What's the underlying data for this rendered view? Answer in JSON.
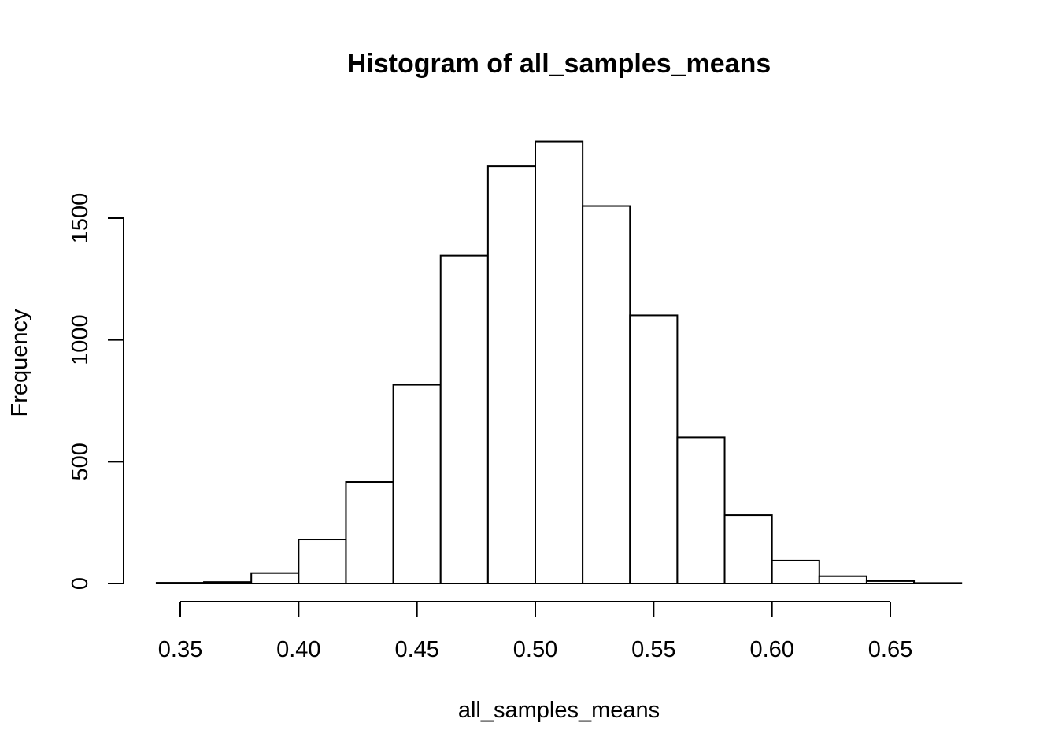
{
  "chart_data": {
    "type": "bar",
    "title": "Histogram of all_samples_means",
    "xlabel": "all_samples_means",
    "ylabel": "Frequency",
    "bin_edges": [
      0.34,
      0.36,
      0.38,
      0.4,
      0.42,
      0.44,
      0.46,
      0.48,
      0.5,
      0.52,
      0.54,
      0.56,
      0.58,
      0.6,
      0.62,
      0.64,
      0.66,
      0.68
    ],
    "values": [
      3,
      6,
      43,
      181,
      417,
      816,
      1346,
      1713,
      1815,
      1550,
      1101,
      600,
      281,
      94,
      30,
      10,
      2
    ],
    "x_ticks": [
      0.35,
      0.4,
      0.45,
      0.5,
      0.55,
      0.6,
      0.65
    ],
    "x_tick_labels": [
      "0.35",
      "0.40",
      "0.45",
      "0.50",
      "0.55",
      "0.60",
      "0.65"
    ],
    "y_ticks": [
      0,
      500,
      1000,
      1500
    ],
    "y_tick_labels": [
      "0",
      "500",
      "1000",
      "1500"
    ],
    "xlim": [
      0.34,
      0.68
    ],
    "ylim": [
      0,
      1815
    ],
    "grid": false
  }
}
